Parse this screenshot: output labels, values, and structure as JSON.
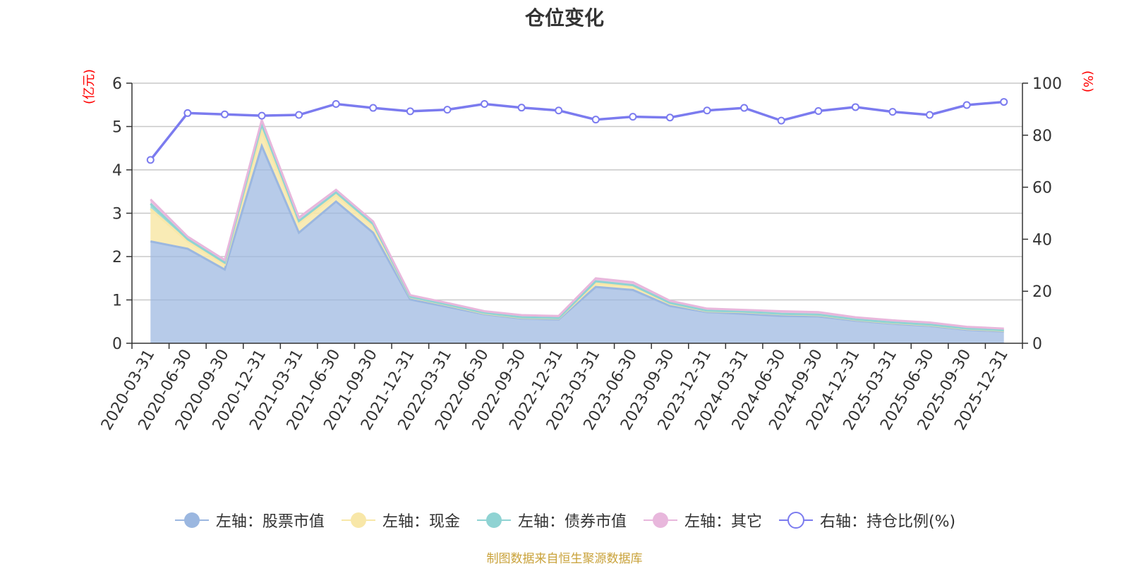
{
  "title": "仓位变化",
  "left_unit": "(亿元)",
  "right_unit": "(%)",
  "source": "制图数据来自恒生聚源数据库",
  "colors": {
    "stock": "#9bb7e0",
    "cash": "#f8e7a8",
    "bond": "#8fd3d3",
    "other": "#e8b7dc",
    "ratio": "#7b7bef",
    "grid": "#c8c8c8",
    "axis": "#333333"
  },
  "legend": [
    {
      "key": "stock",
      "label": "左轴：股票市值",
      "style": "area"
    },
    {
      "key": "cash",
      "label": "左轴：现金",
      "style": "area"
    },
    {
      "key": "bond",
      "label": "左轴：债券市值",
      "style": "area"
    },
    {
      "key": "other",
      "label": "左轴：其它",
      "style": "area"
    },
    {
      "key": "ratio",
      "label": "右轴：持仓比例(%)",
      "style": "line"
    }
  ],
  "chart_data": {
    "type": "area",
    "stacked": true,
    "categories": [
      "2020-03-31",
      "2020-06-30",
      "2020-09-30",
      "2020-12-31",
      "2021-03-31",
      "2021-06-30",
      "2021-09-30",
      "2021-12-31",
      "2022-03-31",
      "2022-06-30",
      "2022-09-30",
      "2022-12-31",
      "2023-03-31",
      "2023-06-30",
      "2023-09-30",
      "2023-12-31",
      "2024-03-31",
      "2024-06-30",
      "2024-09-30",
      "2024-12-31",
      "2025-03-31",
      "2025-06-30",
      "2025-09-30",
      "2025-12-31"
    ],
    "series": [
      {
        "name": "左轴：股票市值",
        "axis": "left",
        "values": [
          2.35,
          2.18,
          1.7,
          4.55,
          2.55,
          3.27,
          2.55,
          1.01,
          0.84,
          0.67,
          0.57,
          0.55,
          1.3,
          1.23,
          0.86,
          0.72,
          0.68,
          0.63,
          0.62,
          0.52,
          0.45,
          0.4,
          0.31,
          0.27
        ]
      },
      {
        "name": "左轴：现金",
        "axis": "left",
        "values": [
          0.75,
          0.17,
          0.12,
          0.35,
          0.22,
          0.15,
          0.16,
          0.05,
          0.04,
          0.02,
          0.02,
          0.02,
          0.08,
          0.08,
          0.05,
          0.02,
          0.04,
          0.04,
          0.03,
          0.02,
          0.02,
          0.02,
          0.02,
          0.02
        ]
      },
      {
        "name": "左轴：债券市值",
        "axis": "left",
        "values": [
          0.12,
          0.05,
          0.04,
          0.15,
          0.05,
          0.06,
          0.04,
          0.01,
          0.01,
          0.01,
          0.01,
          0.01,
          0.05,
          0.03,
          0.02,
          0.01,
          0.01,
          0.01,
          0.01,
          0.01,
          0.01,
          0.01,
          0.01,
          0.01
        ]
      },
      {
        "name": "左轴：其它",
        "axis": "left",
        "values": [
          0.1,
          0.06,
          0.06,
          0.1,
          0.08,
          0.06,
          0.06,
          0.04,
          0.04,
          0.04,
          0.05,
          0.05,
          0.07,
          0.07,
          0.05,
          0.05,
          0.04,
          0.06,
          0.06,
          0.05,
          0.05,
          0.05,
          0.04,
          0.04
        ]
      },
      {
        "name": "右轴：持仓比例(%)",
        "axis": "right",
        "type": "line",
        "values": [
          70.5,
          88.5,
          88.0,
          87.5,
          87.8,
          92.0,
          90.5,
          89.2,
          89.8,
          92.0,
          90.6,
          89.5,
          86.0,
          87.1,
          86.8,
          89.5,
          90.5,
          85.6,
          89.3,
          90.8,
          89.0,
          87.8,
          91.6,
          92.8
        ]
      }
    ],
    "y_left": {
      "min": 0,
      "max": 6,
      "ticks": [
        "0",
        "1",
        "2",
        "3",
        "4",
        "5",
        "6"
      ]
    },
    "y_right": {
      "min": 0,
      "max": 100,
      "ticks": [
        "0",
        "20",
        "40",
        "60",
        "80",
        "100"
      ]
    },
    "grid": true,
    "legend_position": "bottom"
  }
}
